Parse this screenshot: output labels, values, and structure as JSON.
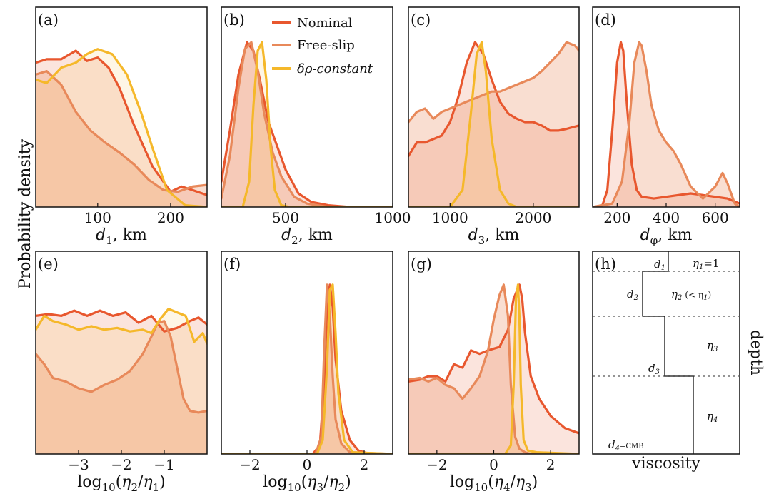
{
  "figure": {
    "ylabel": "Probability density"
  },
  "legend": {
    "items": [
      "Nominal",
      "Free-slip",
      "δρ-constant"
    ]
  },
  "colors": {
    "Nominal": "#e8572e",
    "Free-slip": "#e8895a",
    "δρ-constant": "#f5b82a"
  },
  "chart_data": [
    {
      "type": "area",
      "panel_label": "(a)",
      "xlabel": "d1, km",
      "xlim": [
        15,
        250
      ],
      "xticks": [
        100,
        200
      ],
      "tick_labels": [
        "100",
        "200"
      ],
      "series": [
        {
          "name": "Nominal",
          "x": [
            15,
            30,
            50,
            70,
            85,
            100,
            115,
            130,
            150,
            175,
            200,
            215,
            230,
            250
          ],
          "y": [
            0.85,
            0.87,
            0.87,
            0.92,
            0.86,
            0.88,
            0.82,
            0.7,
            0.48,
            0.24,
            0.09,
            0.12,
            0.1,
            0.07
          ]
        },
        {
          "name": "Free-slip",
          "x": [
            15,
            30,
            50,
            70,
            90,
            110,
            130,
            150,
            170,
            190,
            210,
            230,
            250
          ],
          "y": [
            0.78,
            0.8,
            0.72,
            0.56,
            0.45,
            0.38,
            0.32,
            0.25,
            0.16,
            0.1,
            0.09,
            0.12,
            0.13
          ]
        },
        {
          "name": "δρ-constant",
          "x": [
            15,
            30,
            50,
            70,
            85,
            100,
            120,
            140,
            160,
            175,
            195,
            220,
            250
          ],
          "y": [
            0.75,
            0.73,
            0.82,
            0.85,
            0.9,
            0.93,
            0.9,
            0.78,
            0.55,
            0.35,
            0.1,
            0.01,
            0.0
          ]
        }
      ]
    },
    {
      "type": "area",
      "panel_label": "(b)",
      "xlabel": "d2, km",
      "xlim": [
        200,
        1000
      ],
      "xticks": [
        500,
        1000
      ],
      "tick_labels": [
        "500",
        "1000"
      ],
      "series": [
        {
          "name": "Nominal",
          "x": [
            200,
            240,
            280,
            320,
            350,
            380,
            420,
            460,
            500,
            560,
            620,
            700,
            800,
            1000
          ],
          "y": [
            0.15,
            0.45,
            0.78,
            0.97,
            0.92,
            0.75,
            0.5,
            0.36,
            0.22,
            0.08,
            0.03,
            0.01,
            0.0,
            0.0
          ]
        },
        {
          "name": "Free-slip",
          "x": [
            200,
            240,
            280,
            310,
            340,
            370,
            400,
            440,
            480,
            540,
            600,
            700,
            1000
          ],
          "y": [
            0.05,
            0.3,
            0.7,
            0.93,
            0.97,
            0.8,
            0.55,
            0.32,
            0.18,
            0.06,
            0.02,
            0.0,
            0.0
          ]
        },
        {
          "name": "δρ-constant",
          "x": [
            200,
            300,
            330,
            350,
            370,
            390,
            410,
            430,
            450,
            480,
            520,
            1000
          ],
          "y": [
            0.0,
            0.0,
            0.15,
            0.6,
            0.92,
            0.97,
            0.75,
            0.35,
            0.1,
            0.01,
            0.0,
            0.0
          ]
        }
      ]
    },
    {
      "type": "area",
      "panel_label": "(c)",
      "xlabel": "d3, km",
      "xlim": [
        500,
        2550
      ],
      "xticks": [
        1000,
        2000
      ],
      "tick_labels": [
        "1000",
        "2000"
      ],
      "series": [
        {
          "name": "Nominal",
          "x": [
            500,
            600,
            700,
            800,
            900,
            1000,
            1100,
            1200,
            1300,
            1400,
            1500,
            1600,
            1700,
            1800,
            1900,
            2000,
            2100,
            2200,
            2300,
            2400,
            2550
          ],
          "y": [
            0.3,
            0.38,
            0.38,
            0.4,
            0.42,
            0.5,
            0.65,
            0.85,
            0.97,
            0.9,
            0.75,
            0.62,
            0.55,
            0.52,
            0.5,
            0.5,
            0.48,
            0.45,
            0.45,
            0.46,
            0.48
          ]
        },
        {
          "name": "Free-slip",
          "x": [
            500,
            600,
            700,
            800,
            900,
            1000,
            1100,
            1200,
            1300,
            1400,
            1500,
            1600,
            1700,
            1800,
            1900,
            2000,
            2100,
            2200,
            2300,
            2400,
            2500,
            2550
          ],
          "y": [
            0.5,
            0.56,
            0.58,
            0.52,
            0.56,
            0.58,
            0.6,
            0.62,
            0.64,
            0.66,
            0.68,
            0.68,
            0.7,
            0.72,
            0.74,
            0.76,
            0.8,
            0.85,
            0.9,
            0.97,
            0.95,
            0.92
          ]
        },
        {
          "name": "δρ-constant",
          "x": [
            500,
            1000,
            1150,
            1250,
            1320,
            1380,
            1430,
            1500,
            1600,
            1700,
            1800,
            2550
          ],
          "y": [
            0.0,
            0.0,
            0.1,
            0.55,
            0.9,
            0.97,
            0.8,
            0.4,
            0.1,
            0.02,
            0.0,
            0.0
          ]
        }
      ]
    },
    {
      "type": "area",
      "panel_label": "(d)",
      "xlabel": "dφ, km",
      "xlim": [
        100,
        700
      ],
      "xticks": [
        200,
        400,
        600
      ],
      "tick_labels": [
        "200",
        "400",
        "600"
      ],
      "series": [
        {
          "name": "Nominal",
          "x": [
            100,
            140,
            160,
            180,
            200,
            215,
            225,
            240,
            260,
            280,
            300,
            350,
            400,
            450,
            500,
            550,
            600,
            650,
            700
          ],
          "y": [
            0.0,
            0.01,
            0.1,
            0.45,
            0.85,
            0.97,
            0.92,
            0.6,
            0.25,
            0.1,
            0.06,
            0.05,
            0.06,
            0.07,
            0.08,
            0.07,
            0.06,
            0.05,
            0.02
          ]
        },
        {
          "name": "Free-slip",
          "x": [
            100,
            180,
            220,
            250,
            270,
            290,
            300,
            320,
            340,
            370,
            400,
            430,
            460,
            500,
            550,
            600,
            630,
            650,
            680,
            700
          ],
          "y": [
            0.0,
            0.02,
            0.15,
            0.5,
            0.85,
            0.97,
            0.95,
            0.8,
            0.6,
            0.45,
            0.38,
            0.33,
            0.25,
            0.12,
            0.05,
            0.12,
            0.2,
            0.14,
            0.02,
            0.0
          ]
        }
      ]
    },
    {
      "type": "area",
      "panel_label": "(e)",
      "xlabel": "log10(η2/η1)",
      "xlim": [
        -4,
        0
      ],
      "xticks": [
        -3,
        -2,
        -1
      ],
      "tick_labels": [
        "−3",
        "−2",
        "−1"
      ],
      "series": [
        {
          "name": "Nominal",
          "x": [
            -4,
            -3.7,
            -3.4,
            -3.1,
            -2.8,
            -2.5,
            -2.2,
            -1.9,
            -1.6,
            -1.3,
            -1.0,
            -0.7,
            -0.4,
            -0.2,
            0
          ],
          "y": [
            0.8,
            0.81,
            0.8,
            0.83,
            0.8,
            0.83,
            0.8,
            0.82,
            0.76,
            0.8,
            0.71,
            0.73,
            0.77,
            0.79,
            0.75
          ]
        },
        {
          "name": "Free-slip",
          "x": [
            -4,
            -3.8,
            -3.6,
            -3.3,
            -3.0,
            -2.7,
            -2.4,
            -2.1,
            -1.8,
            -1.5,
            -1.3,
            -1.15,
            -1.0,
            -0.85,
            -0.7,
            -0.55,
            -0.4,
            -0.2,
            0
          ],
          "y": [
            0.58,
            0.52,
            0.44,
            0.42,
            0.38,
            0.36,
            0.4,
            0.43,
            0.48,
            0.58,
            0.68,
            0.76,
            0.77,
            0.68,
            0.5,
            0.32,
            0.25,
            0.24,
            0.25
          ]
        },
        {
          "name": "δρ-constant",
          "x": [
            -4,
            -3.8,
            -3.6,
            -3.3,
            -3.0,
            -2.7,
            -2.4,
            -2.1,
            -1.8,
            -1.5,
            -1.3,
            -1.1,
            -0.9,
            -0.7,
            -0.5,
            -0.3,
            -0.1,
            0
          ],
          "y": [
            0.72,
            0.8,
            0.77,
            0.75,
            0.72,
            0.74,
            0.72,
            0.73,
            0.71,
            0.72,
            0.7,
            0.78,
            0.84,
            0.82,
            0.8,
            0.65,
            0.7,
            0.64
          ]
        }
      ]
    },
    {
      "type": "area",
      "panel_label": "(f)",
      "xlabel": "log10(η3/η2)",
      "xlim": [
        -3,
        3
      ],
      "xticks": [
        -2,
        0,
        2
      ],
      "tick_labels": [
        "−2",
        "0",
        "2"
      ],
      "series": [
        {
          "name": "Nominal",
          "x": [
            -3,
            0.2,
            0.45,
            0.6,
            0.7,
            0.8,
            0.9,
            1.0,
            1.2,
            1.5,
            1.8,
            2.2,
            3
          ],
          "y": [
            0.0,
            0.0,
            0.05,
            0.4,
            0.85,
            0.98,
            0.85,
            0.55,
            0.25,
            0.08,
            0.02,
            0.0,
            0.0
          ]
        },
        {
          "name": "Free-slip",
          "x": [
            -3,
            0.3,
            0.5,
            0.6,
            0.7,
            0.8,
            0.9,
            1.0,
            1.2,
            1.5,
            3
          ],
          "y": [
            0.0,
            0.0,
            0.1,
            0.6,
            0.98,
            0.8,
            0.45,
            0.2,
            0.06,
            0.01,
            0.0
          ]
        },
        {
          "name": "δρ-constant",
          "x": [
            -3,
            0.35,
            0.55,
            0.7,
            0.8,
            0.9,
            1.0,
            1.1,
            1.3,
            1.6,
            3
          ],
          "y": [
            0.0,
            0.0,
            0.08,
            0.5,
            0.95,
            0.98,
            0.7,
            0.35,
            0.08,
            0.01,
            0.0
          ]
        }
      ]
    },
    {
      "type": "area",
      "panel_label": "(g)",
      "xlabel": "log10(η4/η3)",
      "xlim": [
        -3,
        3
      ],
      "xticks": [
        -2,
        0,
        2
      ],
      "tick_labels": [
        "−2",
        "0",
        "2"
      ],
      "series": [
        {
          "name": "Nominal",
          "x": [
            -3,
            -2.6,
            -2.3,
            -2.0,
            -1.7,
            -1.4,
            -1.1,
            -0.8,
            -0.5,
            -0.2,
            0.2,
            0.5,
            0.7,
            0.9,
            1.0,
            1.1,
            1.3,
            1.6,
            2.0,
            2.5,
            3
          ],
          "y": [
            0.42,
            0.43,
            0.45,
            0.45,
            0.42,
            0.52,
            0.5,
            0.6,
            0.58,
            0.6,
            0.62,
            0.72,
            0.9,
            0.98,
            0.9,
            0.7,
            0.45,
            0.32,
            0.22,
            0.15,
            0.12
          ]
        },
        {
          "name": "Free-slip",
          "x": [
            -3,
            -2.6,
            -2.3,
            -2.0,
            -1.7,
            -1.4,
            -1.1,
            -0.8,
            -0.5,
            -0.2,
            0.0,
            0.2,
            0.35,
            0.5,
            0.6,
            0.75,
            0.9,
            1.1,
            1.3,
            1.6,
            2.0,
            3
          ],
          "y": [
            0.43,
            0.44,
            0.42,
            0.44,
            0.4,
            0.38,
            0.32,
            0.38,
            0.45,
            0.6,
            0.78,
            0.92,
            0.98,
            0.8,
            0.4,
            0.1,
            0.03,
            0.01,
            0.0,
            0.0,
            0.0,
            0.0
          ]
        },
        {
          "name": "δρ-constant",
          "x": [
            -3,
            0.4,
            0.6,
            0.7,
            0.78,
            0.85,
            0.9,
            0.95,
            1.05,
            1.2,
            1.5,
            3
          ],
          "y": [
            0.0,
            0.0,
            0.05,
            0.4,
            0.9,
            0.98,
            0.8,
            0.4,
            0.08,
            0.02,
            0.01,
            0.0
          ]
        }
      ]
    }
  ],
  "schematic": {
    "panel_label": "(h)",
    "xlabel": "viscosity",
    "ylabel": "depth",
    "labels": {
      "d1": "d",
      "d1_sub": "1",
      "eta1": "η",
      "eta1_sub": "1",
      "eta1_eq": "=1",
      "d2": "d",
      "d2_sub": "2",
      "eta2": "η",
      "eta2_sub": "2",
      "eta2_cond": "(< η",
      "eta2_cond_sub": "1",
      "eta2_close": ")",
      "d3": "d",
      "d3_sub": "3",
      "eta3": "η",
      "eta3_sub": "3",
      "eta4": "η",
      "eta4_sub": "4",
      "d4": "d",
      "d4_sub": "4",
      "d4_eq": "=CMB"
    }
  }
}
